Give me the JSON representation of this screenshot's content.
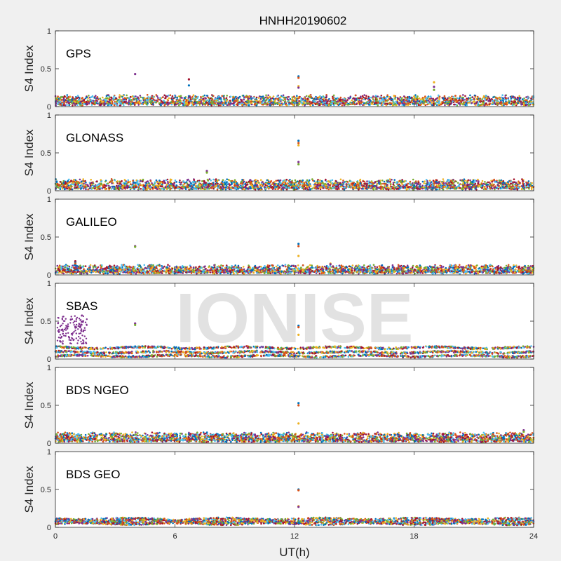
{
  "chart_data": {
    "type": "scatter",
    "title": "HNHH20190602",
    "xlabel": "UT(h)",
    "ylabel": "S4 Index",
    "xlim": [
      0,
      24
    ],
    "ylim": [
      0,
      1
    ],
    "x_ticks": [
      0,
      6,
      12,
      18,
      24
    ],
    "y_ticks": [
      0,
      0.5,
      1
    ],
    "y_tick_labels": [
      "0",
      "0.5",
      "1"
    ],
    "grid": false,
    "watermark": "IONISE",
    "series_colors": [
      "#0072bd",
      "#d95319",
      "#edb120",
      "#7e2f8e",
      "#77ac30",
      "#4dbeee",
      "#a2142f"
    ],
    "panels": [
      {
        "label": "GPS",
        "baseline_range": [
          0.03,
          0.14
        ],
        "features": [
          {
            "x": 12.2,
            "y": [
              0.4,
              0.38,
              0.27,
              0.25
            ]
          },
          {
            "x": 4.0,
            "y": [
              0.43
            ]
          },
          {
            "x": 6.7,
            "y": [
              0.36,
              0.28
            ]
          },
          {
            "x": 19.0,
            "y": [
              0.32,
              0.26,
              0.22
            ]
          }
        ]
      },
      {
        "label": "GLONASS",
        "baseline_range": [
          0.03,
          0.14
        ],
        "features": [
          {
            "x": 12.2,
            "y": [
              0.66,
              0.63,
              0.6,
              0.38,
              0.35
            ]
          },
          {
            "x": 7.6,
            "y": [
              0.26,
              0.24
            ]
          }
        ]
      },
      {
        "label": "GALILEO",
        "baseline_range": [
          0.03,
          0.12
        ],
        "features": [
          {
            "x": 12.2,
            "y": [
              0.41,
              0.38,
              0.25
            ]
          },
          {
            "x": 4.0,
            "y": [
              0.38,
              0.37
            ]
          },
          {
            "x": 1.0,
            "y": [
              0.18,
              0.16,
              0.15
            ]
          },
          {
            "x": 13.8,
            "y": [
              0.15,
              0.14
            ]
          }
        ]
      },
      {
        "label": "SBAS",
        "baseline_levels": [
          0.04,
          0.09,
          0.15
        ],
        "features": [
          {
            "x": 12.2,
            "y": [
              0.44,
              0.42,
              0.32
            ]
          },
          {
            "x": 4.0,
            "y": [
              0.47,
              0.45
            ]
          }
        ],
        "scatter_cluster": {
          "x_range": [
            0.1,
            1.6
          ],
          "y_range": [
            0.2,
            0.58
          ]
        }
      },
      {
        "label": "BDS NGEO",
        "baseline_range": [
          0.03,
          0.13
        ],
        "features": [
          {
            "x": 12.2,
            "y": [
              0.53,
              0.5,
              0.26
            ]
          },
          {
            "x": 23.5,
            "y": [
              0.17,
              0.15
            ]
          }
        ]
      },
      {
        "label": "BDS GEO",
        "baseline_levels": [
          0.05,
          0.07,
          0.09,
          0.11
        ],
        "features": [
          {
            "x": 12.2,
            "y": [
              0.5,
              0.49,
              0.28,
              0.27
            ]
          }
        ]
      }
    ]
  }
}
